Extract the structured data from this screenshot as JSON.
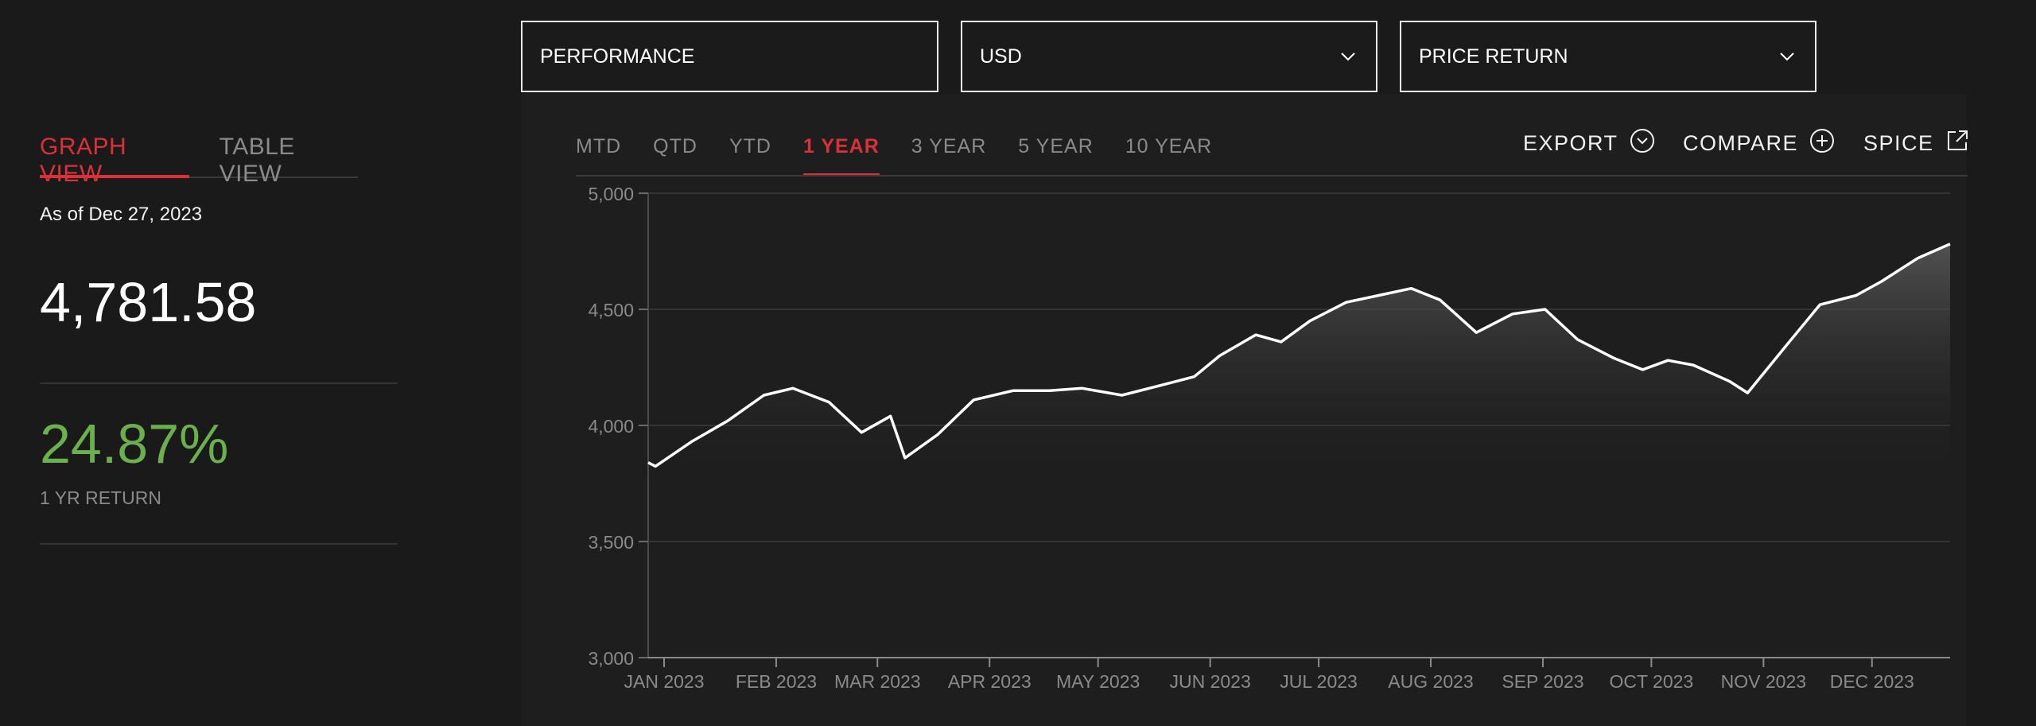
{
  "filters": {
    "view": "PERFORMANCE",
    "currency": "USD",
    "return_type": "PRICE RETURN"
  },
  "left_tabs": [
    "GRAPH VIEW",
    "TABLE VIEW"
  ],
  "as_of": "As of Dec 27, 2023",
  "price": "4,781.58",
  "return_value": "24.87%",
  "return_label": "1 YR RETURN",
  "range_tabs": [
    "MTD",
    "QTD",
    "YTD",
    "1 YEAR",
    "3 YEAR",
    "5 YEAR",
    "10 YEAR"
  ],
  "active_range": "1 YEAR",
  "actions": {
    "export": "EXPORT",
    "compare": "COMPARE",
    "spice": "SPICE"
  },
  "colors": {
    "accent_red": "#d9313a",
    "return_green": "#6ab04c"
  },
  "chart_data": {
    "type": "area",
    "x": [
      "2023-01-01",
      "2023-01-03",
      "2023-01-13",
      "2023-01-23",
      "2023-02-02",
      "2023-02-10",
      "2023-02-20",
      "2023-03-01",
      "2023-03-09",
      "2023-03-13",
      "2023-03-22",
      "2023-04-01",
      "2023-04-12",
      "2023-04-22",
      "2023-05-01",
      "2023-05-12",
      "2023-05-22",
      "2023-06-01",
      "2023-06-08",
      "2023-06-18",
      "2023-06-25",
      "2023-07-03",
      "2023-07-13",
      "2023-07-22",
      "2023-07-31",
      "2023-08-08",
      "2023-08-18",
      "2023-08-28",
      "2023-09-06",
      "2023-09-15",
      "2023-09-25",
      "2023-10-03",
      "2023-10-10",
      "2023-10-17",
      "2023-10-27",
      "2023-11-01",
      "2023-11-12",
      "2023-11-21",
      "2023-12-01",
      "2023-12-08",
      "2023-12-18",
      "2023-12-27"
    ],
    "y": [
      3840,
      3824,
      3930,
      4020,
      4130,
      4160,
      4100,
      3970,
      4040,
      3860,
      3960,
      4110,
      4150,
      4150,
      4160,
      4130,
      4170,
      4210,
      4300,
      4390,
      4360,
      4450,
      4530,
      4560,
      4590,
      4540,
      4400,
      4480,
      4500,
      4370,
      4290,
      4240,
      4280,
      4260,
      4190,
      4140,
      4350,
      4520,
      4560,
      4620,
      4720,
      4781.58
    ],
    "y_ticks": [
      "3,000",
      "3,500",
      "4,000",
      "4,500",
      "5,000"
    ],
    "ylim": [
      3000,
      5000
    ],
    "x_ticks": [
      "JAN 2023",
      "FEB 2023",
      "MAR 2023",
      "APR 2023",
      "MAY 2023",
      "JUN 2023",
      "JUL 2023",
      "AUG 2023",
      "SEP 2023",
      "OCT 2023",
      "NOV 2023",
      "DEC 2023"
    ],
    "grid": true
  }
}
